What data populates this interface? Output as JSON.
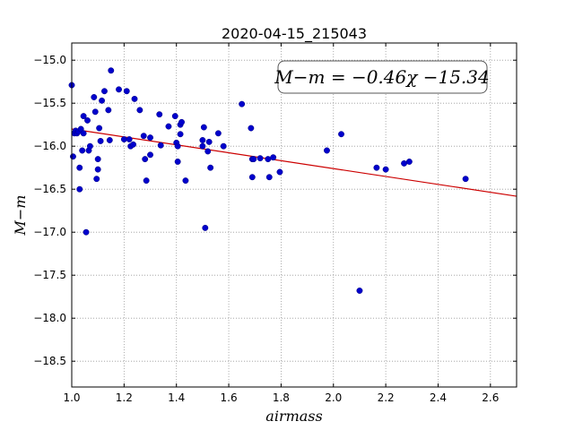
{
  "chart_data": {
    "type": "scatter",
    "title": "2020-04-15_215043",
    "xlabel": "airmass",
    "ylabel": "M−m",
    "xlim": [
      1.0,
      2.7
    ],
    "ylim": [
      -18.8,
      -14.8
    ],
    "y_inverted": true,
    "grid": true,
    "x_ticks": [
      1.0,
      1.2,
      1.4,
      1.6,
      1.8,
      2.0,
      2.2,
      2.4,
      2.6
    ],
    "x_tick_labels": [
      "1.0",
      "1.2",
      "1.4",
      "1.6",
      "1.8",
      "2.0",
      "2.2",
      "2.4",
      "2.6"
    ],
    "y_ticks": [
      -15.0,
      -15.5,
      -16.0,
      -16.5,
      -17.0,
      -17.5,
      -18.0,
      -18.5
    ],
    "y_tick_labels": [
      "−15.0",
      "−15.5",
      "−16.0",
      "−16.5",
      "−17.0",
      "−17.5",
      "−18.0",
      "−18.5"
    ],
    "annotation": "M−m = −0.46χ −15.34",
    "colors": {
      "points": "#0000cc",
      "fit": "#cc0000",
      "grid": "#999999"
    },
    "fit": {
      "slope": -0.46,
      "intercept": -15.34,
      "x_range": [
        1.0,
        2.7
      ]
    },
    "points": [
      [
        1.0,
        -15.29
      ],
      [
        1.005,
        -16.12
      ],
      [
        1.01,
        -15.85
      ],
      [
        1.015,
        -15.82
      ],
      [
        1.02,
        -15.85
      ],
      [
        1.025,
        -15.83
      ],
      [
        1.03,
        -16.25
      ],
      [
        1.03,
        -16.5
      ],
      [
        1.035,
        -15.8
      ],
      [
        1.04,
        -16.05
      ],
      [
        1.045,
        -15.85
      ],
      [
        1.045,
        -15.65
      ],
      [
        1.055,
        -17.0
      ],
      [
        1.06,
        -15.7
      ],
      [
        1.065,
        -16.05
      ],
      [
        1.07,
        -16.0
      ],
      [
        1.085,
        -15.43
      ],
      [
        1.09,
        -15.6
      ],
      [
        1.095,
        -16.38
      ],
      [
        1.1,
        -16.15
      ],
      [
        1.1,
        -16.27
      ],
      [
        1.105,
        -15.79
      ],
      [
        1.11,
        -15.94
      ],
      [
        1.115,
        -15.47
      ],
      [
        1.125,
        -15.36
      ],
      [
        1.14,
        -15.58
      ],
      [
        1.145,
        -15.93
      ],
      [
        1.15,
        -15.12
      ],
      [
        1.18,
        -15.34
      ],
      [
        1.2,
        -15.92
      ],
      [
        1.21,
        -15.36
      ],
      [
        1.22,
        -15.92
      ],
      [
        1.225,
        -16.0
      ],
      [
        1.235,
        -15.98
      ],
      [
        1.24,
        -15.45
      ],
      [
        1.26,
        -15.58
      ],
      [
        1.275,
        -15.88
      ],
      [
        1.28,
        -16.15
      ],
      [
        1.285,
        -16.4
      ],
      [
        1.3,
        -15.9
      ],
      [
        1.3,
        -16.1
      ],
      [
        1.335,
        -15.63
      ],
      [
        1.34,
        -15.99
      ],
      [
        1.37,
        -15.77
      ],
      [
        1.395,
        -15.65
      ],
      [
        1.4,
        -15.96
      ],
      [
        1.405,
        -16.0
      ],
      [
        1.405,
        -16.18
      ],
      [
        1.415,
        -15.75
      ],
      [
        1.415,
        -15.86
      ],
      [
        1.42,
        -15.72
      ],
      [
        1.435,
        -16.4
      ],
      [
        1.5,
        -15.93
      ],
      [
        1.5,
        -16.0
      ],
      [
        1.505,
        -15.78
      ],
      [
        1.51,
        -16.95
      ],
      [
        1.52,
        -16.06
      ],
      [
        1.525,
        -15.95
      ],
      [
        1.53,
        -16.25
      ],
      [
        1.56,
        -15.85
      ],
      [
        1.58,
        -16.0
      ],
      [
        1.65,
        -15.51
      ],
      [
        1.685,
        -15.79
      ],
      [
        1.69,
        -16.15
      ],
      [
        1.69,
        -16.36
      ],
      [
        1.695,
        -16.15
      ],
      [
        1.72,
        -16.14
      ],
      [
        1.75,
        -16.15
      ],
      [
        1.755,
        -16.36
      ],
      [
        1.77,
        -16.13
      ],
      [
        1.795,
        -16.3
      ],
      [
        1.975,
        -16.05
      ],
      [
        2.03,
        -15.86
      ],
      [
        2.1,
        -17.68
      ],
      [
        2.165,
        -16.25
      ],
      [
        2.2,
        -16.27
      ],
      [
        2.27,
        -16.2
      ],
      [
        2.29,
        -16.18
      ],
      [
        2.505,
        -16.38
      ]
    ]
  }
}
